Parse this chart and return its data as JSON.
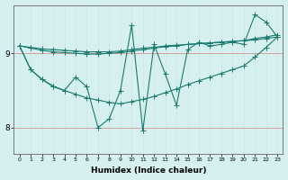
{
  "xlabel": "Humidex (Indice chaleur)",
  "background_color": "#d5f0ef",
  "grid_color_major": "#c8e8e5",
  "grid_color_minor": "#ddf5f3",
  "line_color": "#1a7a6e",
  "x_min": -0.5,
  "x_max": 23.5,
  "y_min": 7.65,
  "y_max": 9.65,
  "yticks": [
    8,
    9
  ],
  "xticks": [
    0,
    1,
    2,
    3,
    4,
    5,
    6,
    7,
    8,
    9,
    10,
    11,
    12,
    13,
    14,
    15,
    16,
    17,
    18,
    19,
    20,
    21,
    22,
    23
  ],
  "line_flat1": [
    9.1,
    9.08,
    9.06,
    9.05,
    9.04,
    9.03,
    9.02,
    9.02,
    9.02,
    9.03,
    9.05,
    9.07,
    9.08,
    9.1,
    9.11,
    9.12,
    9.13,
    9.14,
    9.15,
    9.16,
    9.17,
    9.2,
    9.22,
    9.25
  ],
  "line_flat2": [
    9.1,
    9.07,
    9.04,
    9.02,
    9.01,
    9.0,
    8.99,
    8.99,
    9.0,
    9.01,
    9.03,
    9.05,
    9.07,
    9.09,
    9.1,
    9.12,
    9.13,
    9.14,
    9.15,
    9.16,
    9.17,
    9.18,
    9.2,
    9.22
  ],
  "line_diagonal": [
    9.1,
    8.78,
    8.65,
    8.56,
    8.5,
    8.45,
    8.4,
    8.37,
    8.34,
    8.32,
    8.35,
    8.38,
    8.42,
    8.47,
    8.52,
    8.58,
    8.63,
    8.68,
    8.73,
    8.78,
    8.83,
    8.95,
    9.08,
    9.22
  ],
  "line_jagged": [
    9.1,
    8.78,
    8.65,
    8.55,
    8.5,
    8.68,
    8.55,
    8.0,
    8.12,
    8.5,
    9.38,
    7.96,
    9.12,
    8.72,
    8.3,
    9.05,
    9.15,
    9.1,
    9.12,
    9.15,
    9.12,
    9.52,
    9.42,
    9.22
  ]
}
